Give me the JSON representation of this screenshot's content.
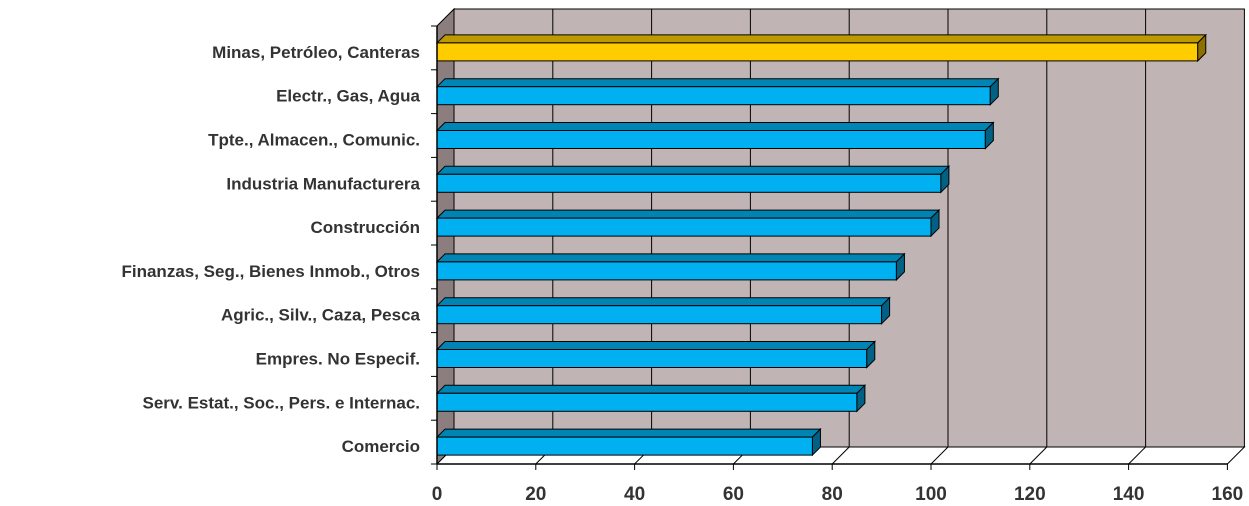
{
  "chart_data": {
    "type": "bar",
    "orientation": "horizontal",
    "style": "3d",
    "categories": [
      "Minas, Petróleo, Canteras",
      "Electr., Gas, Agua",
      "Tpte., Almacen., Comunic.",
      "Industria Manufacturera",
      "Construcción",
      "Finanzas, Seg., Bienes Inmob., Otros",
      "Agric., Silv., Caza, Pesca",
      "Empres. No Especif.",
      "Serv. Estat., Soc., Pers. e Internac.",
      "Comercio"
    ],
    "values": [
      154,
      112,
      111,
      102,
      100,
      93,
      90,
      87,
      85,
      76
    ],
    "xlim": [
      0,
      160
    ],
    "xticks": [
      "0",
      "20",
      "40",
      "60",
      "80",
      "100",
      "120",
      "140",
      "160"
    ],
    "grid": "vertical",
    "colors": {
      "highlight": "#ffcc00",
      "bar": "#00b0f0",
      "background": "#c0b4b4"
    },
    "highlight_index": 0
  }
}
